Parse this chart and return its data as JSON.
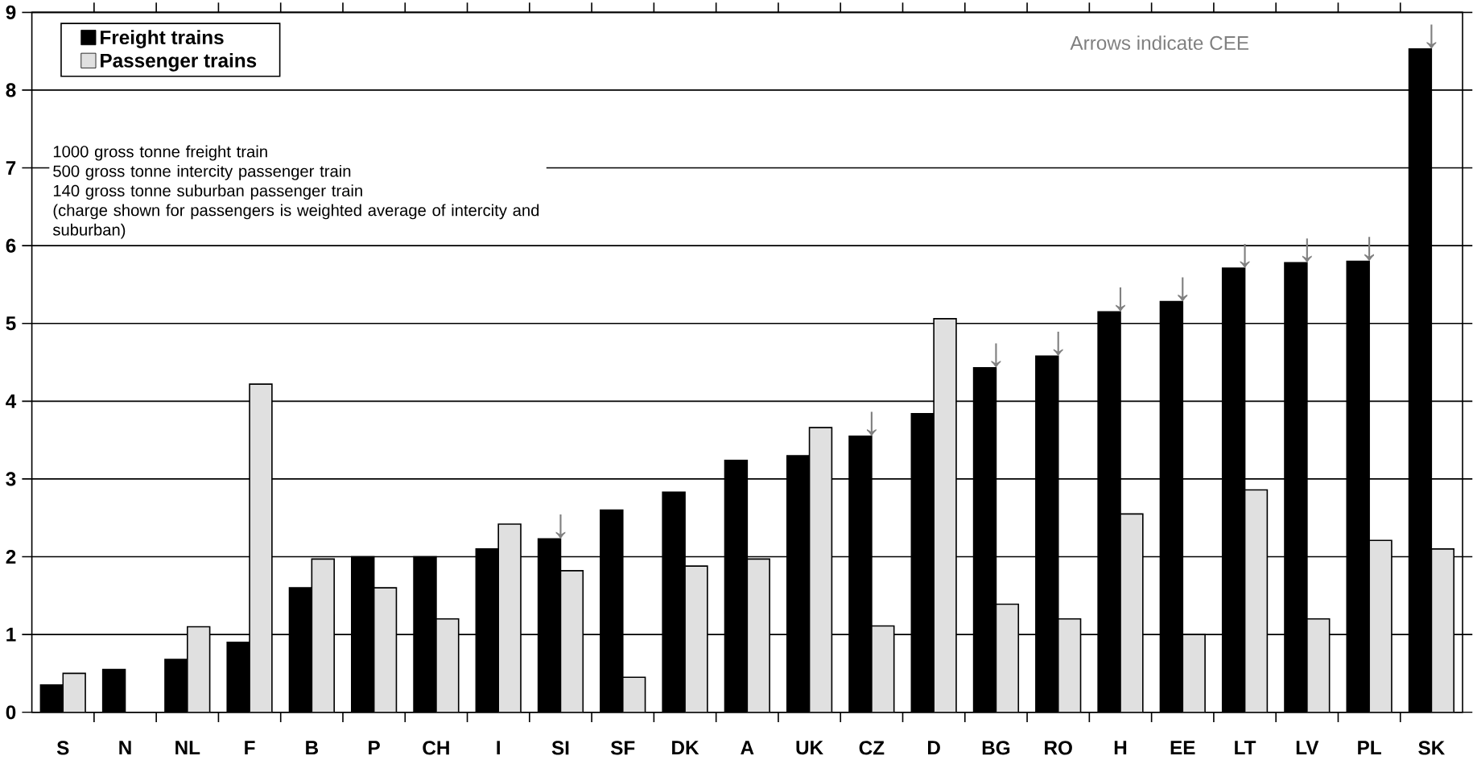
{
  "chart_data": {
    "type": "bar",
    "categories": [
      "S",
      "N",
      "NL",
      "F",
      "B",
      "P",
      "CH",
      "I",
      "SI",
      "SF",
      "DK",
      "A",
      "UK",
      "CZ",
      "D",
      "BG",
      "RO",
      "H",
      "EE",
      "LT",
      "LV",
      "PL",
      "SK"
    ],
    "series": [
      {
        "name": "Freight trains",
        "color": "#000000",
        "values": [
          0.35,
          0.55,
          0.68,
          0.9,
          1.6,
          2.0,
          2.0,
          2.1,
          2.23,
          2.6,
          2.83,
          3.24,
          3.3,
          3.55,
          3.84,
          4.43,
          4.58,
          5.15,
          5.28,
          5.71,
          5.78,
          5.8,
          8.53
        ]
      },
      {
        "name": "Passenger trains",
        "color": "#e0e0e0",
        "values": [
          0.5,
          null,
          1.1,
          4.22,
          1.97,
          1.6,
          1.2,
          2.42,
          1.82,
          0.45,
          1.88,
          1.97,
          3.66,
          1.11,
          5.06,
          1.39,
          1.2,
          2.55,
          1.0,
          2.86,
          1.2,
          2.21,
          2.1
        ]
      }
    ],
    "ylim": [
      0,
      9
    ],
    "yticks": [
      0,
      1,
      2,
      3,
      4,
      5,
      6,
      7,
      8,
      9
    ],
    "grid": "y",
    "legend": "top left",
    "annotations": [
      "Arrows indicate CEE",
      "1000 gross tonne freight train",
      "500 gross tonne intercity passenger train",
      "140 gross tonne suburban passenger train",
      "(charge shown for passengers is weighted average of intercity and suburban)",
      {
        "text": "↓",
        "x": "SI",
        "y": 2.23
      },
      {
        "text": "↓",
        "x": "CZ",
        "y": 3.55
      },
      {
        "text": "↓",
        "x": "BG",
        "y": 4.43
      },
      {
        "text": "↓",
        "x": "RO",
        "y": 4.58
      },
      {
        "text": "↓",
        "x": "H",
        "y": 5.15
      },
      {
        "text": "↓",
        "x": "EE",
        "y": 5.28
      },
      {
        "text": "↓",
        "x": "LT",
        "y": 5.71
      },
      {
        "text": "↓",
        "x": "LV",
        "y": 5.78
      },
      {
        "text": "↓",
        "x": "PL",
        "y": 5.8
      },
      {
        "text": "↓",
        "x": "SK",
        "y": 8.53
      }
    ]
  }
}
